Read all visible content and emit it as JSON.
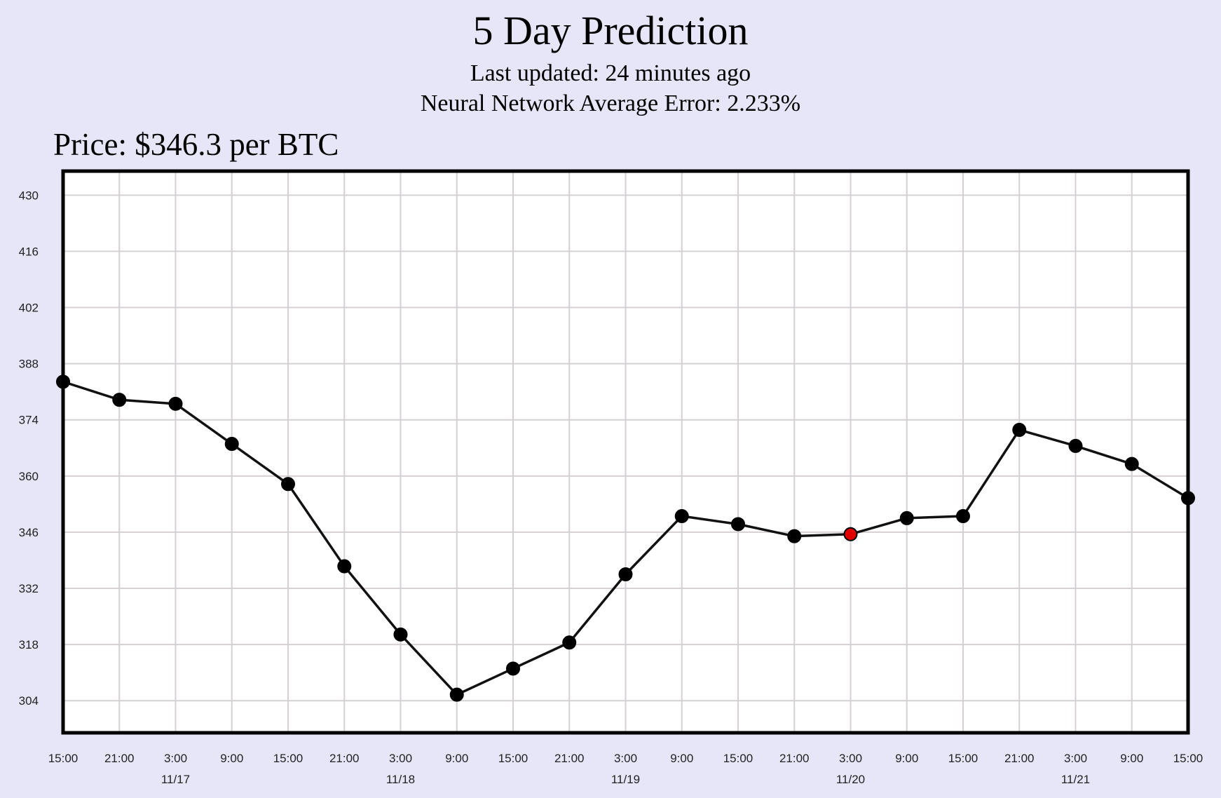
{
  "header": {
    "title": "5 Day Prediction",
    "last_updated": "Last updated: 24 minutes ago",
    "error": "Neural Network Average Error: 2.233%"
  },
  "price_label": "Price: $346.3 per BTC",
  "colors": {
    "background": "#e6e6f8",
    "plot_background": "#ffffff",
    "grid": "#d4d0d4",
    "line": "#111111",
    "point": "#000000",
    "current_point": "#e00000"
  },
  "chart_data": {
    "type": "line",
    "title": "",
    "xlabel": "",
    "ylabel": "",
    "ylim": [
      296,
      436
    ],
    "y_ticks": [
      304,
      318,
      332,
      346,
      360,
      374,
      388,
      402,
      416,
      430
    ],
    "x_ticks": [
      {
        "time": "15:00",
        "date": ""
      },
      {
        "time": "21:00",
        "date": ""
      },
      {
        "time": "3:00",
        "date": "11/17"
      },
      {
        "time": "9:00",
        "date": ""
      },
      {
        "time": "15:00",
        "date": ""
      },
      {
        "time": "21:00",
        "date": ""
      },
      {
        "time": "3:00",
        "date": "11/18"
      },
      {
        "time": "9:00",
        "date": ""
      },
      {
        "time": "15:00",
        "date": ""
      },
      {
        "time": "21:00",
        "date": ""
      },
      {
        "time": "3:00",
        "date": "11/19"
      },
      {
        "time": "9:00",
        "date": ""
      },
      {
        "time": "15:00",
        "date": ""
      },
      {
        "time": "21:00",
        "date": ""
      },
      {
        "time": "3:00",
        "date": "11/20"
      },
      {
        "time": "9:00",
        "date": ""
      },
      {
        "time": "15:00",
        "date": ""
      },
      {
        "time": "21:00",
        "date": ""
      },
      {
        "time": "3:00",
        "date": "11/21"
      },
      {
        "time": "9:00",
        "date": ""
      },
      {
        "time": "15:00",
        "date": ""
      }
    ],
    "values": [
      383.5,
      379,
      378,
      368,
      358,
      337.5,
      320.5,
      305.5,
      312,
      318.5,
      335.5,
      350,
      348,
      345,
      345.5,
      349.5,
      350,
      371.5,
      367.5,
      363,
      354.5
    ],
    "highlight_index": 14,
    "grid": true
  }
}
